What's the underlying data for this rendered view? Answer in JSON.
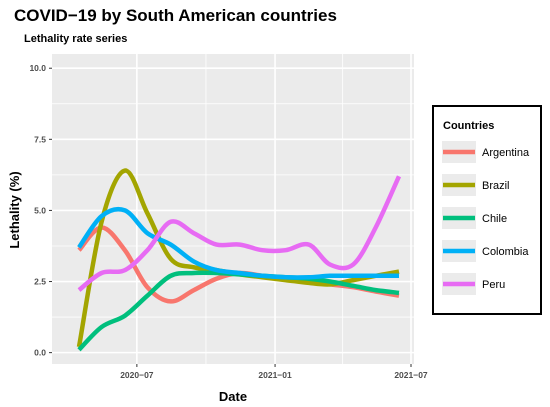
{
  "chart_data": {
    "type": "line",
    "title": "COVID−19 by South American countries",
    "subtitle": "Lethality rate series",
    "xlabel": "Date",
    "ylabel": "Lethality (%)",
    "x": [
      "2020-04-15",
      "2020-05-15",
      "2020-06-15",
      "2020-07-15",
      "2020-08-15",
      "2020-09-15",
      "2020-10-15",
      "2020-11-15",
      "2020-12-15",
      "2021-01-15",
      "2021-02-15",
      "2021-03-15",
      "2021-04-15",
      "2021-05-15",
      "2021-06-15"
    ],
    "x_range": [
      "2020-03-10",
      "2021-07-05"
    ],
    "xticks": [
      {
        "date": "2020-07-01",
        "label": "2020−07"
      },
      {
        "date": "2021-01-01",
        "label": "2021−01"
      },
      {
        "date": "2021-07-01",
        "label": "2021−07"
      }
    ],
    "ylim": [
      -0.4,
      10.5
    ],
    "yticks": [
      {
        "value": 0,
        "label": "0.0"
      },
      {
        "value": 2.5,
        "label": "2.5"
      },
      {
        "value": 5,
        "label": "5.0"
      },
      {
        "value": 7.5,
        "label": "7.5"
      },
      {
        "value": 10,
        "label": "10.0"
      }
    ],
    "grid": true,
    "legend_title": "Countries",
    "legend_position": "right",
    "series": [
      {
        "name": "Argentina",
        "color": "#F8766D",
        "values": [
          3.6,
          4.4,
          3.6,
          2.3,
          1.8,
          2.2,
          2.6,
          2.8,
          2.7,
          2.6,
          2.5,
          2.4,
          2.3,
          2.15,
          2.0
        ]
      },
      {
        "name": "Brazil",
        "color": "#A3A500",
        "values": [
          0.2,
          4.6,
          6.4,
          4.9,
          3.3,
          3.0,
          2.9,
          2.75,
          2.65,
          2.55,
          2.45,
          2.4,
          2.55,
          2.7,
          2.85
        ]
      },
      {
        "name": "Chile",
        "color": "#00BF7D",
        "values": [
          0.1,
          0.9,
          1.3,
          2.0,
          2.7,
          2.8,
          2.8,
          2.75,
          2.7,
          2.65,
          2.6,
          2.5,
          2.35,
          2.2,
          2.1
        ]
      },
      {
        "name": "Colombia",
        "color": "#00B0F6",
        "values": [
          3.7,
          4.8,
          5.0,
          4.2,
          3.8,
          3.2,
          2.9,
          2.8,
          2.7,
          2.65,
          2.65,
          2.7,
          2.7,
          2.7,
          2.7
        ]
      },
      {
        "name": "Peru",
        "color": "#E76BF3",
        "values": [
          2.2,
          2.8,
          2.9,
          3.6,
          4.6,
          4.2,
          3.8,
          3.8,
          3.6,
          3.6,
          3.8,
          3.1,
          3.1,
          4.4,
          6.2
        ]
      }
    ]
  }
}
